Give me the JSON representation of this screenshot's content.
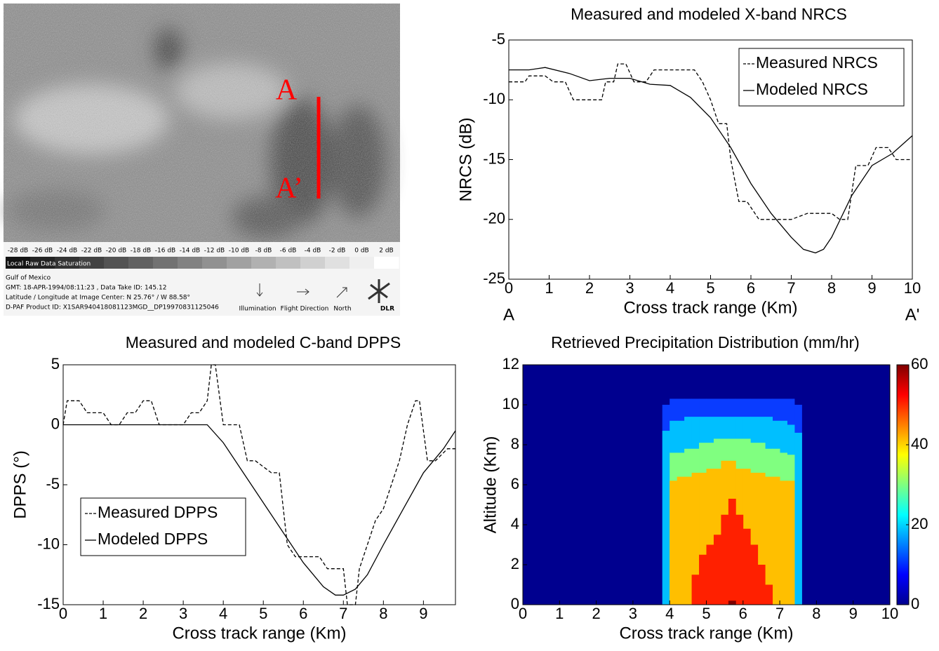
{
  "sar_image": {
    "cut_start_label": "A",
    "cut_end_label": "A’",
    "scale_labels": [
      "-28 dB",
      "-26 dB",
      "-24 dB",
      "-22 dB",
      "-20 dB",
      "-18 dB",
      "-16 dB",
      "-14 dB",
      "-12 dB",
      "-10 dB",
      "-8 dB",
      "-6 dB",
      "-4 dB",
      "-2 dB",
      "0 dB",
      "2 dB"
    ],
    "saturation_label": "Local Raw Data Saturation",
    "info_lines": [
      "Gulf of Mexico",
      "GMT: 18-APR-1994/08:11:23 , Data Take ID: 145.12",
      "Latitude / Longitude at Image Center: N 25.76° / W 88.58°",
      "D-PAF Product ID: X1SAR940418081123MGD__DP19970831125046"
    ],
    "icon_labels": [
      "Illumination",
      "Flight Direction",
      "North"
    ],
    "logo": "DLR"
  },
  "chart_data": [
    {
      "type": "line",
      "title": "Measured and modeled X-band NRCS",
      "xlabel": "Cross track range (Km)",
      "ylabel": "NRCS (dB)",
      "x_end_labels": [
        "A",
        "A'"
      ],
      "xlim": [
        0,
        10
      ],
      "ylim": [
        -25,
        -5
      ],
      "xticks": [
        0,
        1,
        2,
        3,
        4,
        5,
        6,
        7,
        8,
        9,
        10
      ],
      "yticks": [
        -25,
        -20,
        -15,
        -10,
        -5
      ],
      "legend": "upper right",
      "series": [
        {
          "name": "Measured NRCS",
          "color": "#000000",
          "style": "dashed",
          "x": [
            0,
            0.4,
            0.5,
            0.9,
            1.1,
            1.4,
            1.6,
            2.3,
            2.4,
            2.6,
            2.7,
            2.9,
            3.1,
            3.4,
            3.6,
            4.6,
            4.8,
            5.0,
            5.2,
            5.4,
            5.5,
            5.7,
            5.9,
            6.2,
            6.6,
            7.0,
            7.4,
            7.8,
            8.0,
            8.2,
            8.4,
            8.6,
            8.9,
            9.1,
            9.4,
            9.6,
            10
          ],
          "values": [
            -8.5,
            -8.5,
            -8,
            -8,
            -8.5,
            -8.5,
            -10,
            -10,
            -8.5,
            -8.5,
            -7,
            -7,
            -8.5,
            -8.5,
            -7.5,
            -7.5,
            -8.5,
            -10,
            -12,
            -12,
            -15,
            -18.5,
            -18.5,
            -20,
            -20,
            -20,
            -19.5,
            -19.5,
            -19.5,
            -20,
            -20,
            -15.5,
            -15.5,
            -14,
            -14,
            -15,
            -15
          ]
        },
        {
          "name": "Modeled NRCS",
          "color": "#000000",
          "style": "solid",
          "x": [
            0,
            0.5,
            0.9,
            1.5,
            2,
            2.5,
            3,
            3.5,
            4,
            4.5,
            5,
            5.5,
            6,
            6.5,
            7,
            7.3,
            7.6,
            7.8,
            8,
            8.5,
            9,
            9.5,
            10
          ],
          "values": [
            -7.5,
            -7.5,
            -7.3,
            -7.8,
            -8.4,
            -8.2,
            -8.2,
            -8.7,
            -8.8,
            -9.8,
            -11.5,
            -14,
            -17,
            -19.5,
            -21.5,
            -22.5,
            -22.8,
            -22.5,
            -21.5,
            -18,
            -15.5,
            -14.5,
            -13
          ]
        }
      ]
    },
    {
      "type": "line",
      "title": "Measured and modeled C-band DPPS",
      "xlabel": "Cross track range (Km)",
      "ylabel": "DPPS (°)",
      "xlim": [
        0,
        9.8
      ],
      "ylim": [
        -15,
        5
      ],
      "xticks": [
        0,
        1,
        2,
        3,
        4,
        5,
        6,
        7,
        8,
        9
      ],
      "yticks": [
        -15,
        -10,
        -5,
        0,
        5
      ],
      "legend": "lower left",
      "series": [
        {
          "name": "Measured DPPS",
          "color": "#000000",
          "style": "dashed",
          "x": [
            0,
            0.1,
            0.4,
            0.6,
            1,
            1.2,
            1.4,
            1.6,
            1.8,
            2.0,
            2.2,
            2.4,
            3.0,
            3.2,
            3.4,
            3.6,
            3.7,
            3.8,
            4.0,
            4.4,
            4.6,
            4.8,
            5.2,
            5.4,
            5.6,
            5.8,
            6.4,
            6.6,
            7.0,
            7.1,
            7.3,
            7.4,
            7.6,
            7.8,
            8.0,
            8.2,
            8.4,
            8.6,
            8.8,
            8.9,
            9.1,
            9.3,
            9.6,
            9.8
          ],
          "values": [
            0,
            2,
            2,
            1,
            1,
            0,
            0,
            1,
            1,
            2,
            2,
            0,
            0,
            1,
            1,
            2,
            5,
            5,
            0,
            0,
            -3,
            -3,
            -4,
            -4,
            -10,
            -11,
            -11,
            -12,
            -12,
            -15,
            -15,
            -12,
            -10,
            -8,
            -7,
            -5,
            -3,
            0,
            2,
            2,
            -3,
            -3,
            -2,
            -2
          ]
        },
        {
          "name": "Modeled DPPS",
          "color": "#000000",
          "style": "solid",
          "x": [
            0,
            3.6,
            4,
            4.5,
            5,
            5.5,
            6,
            6.5,
            6.8,
            7,
            7.3,
            7.6,
            8,
            8.5,
            9,
            9.5,
            9.8
          ],
          "values": [
            0,
            0,
            -1.5,
            -4,
            -6.5,
            -9,
            -11.5,
            -13.5,
            -14.2,
            -14.2,
            -13.7,
            -12.5,
            -10,
            -7,
            -4,
            -2,
            -0.5
          ]
        }
      ]
    },
    {
      "type": "contourf",
      "title": "Retrieved Precipitation Distribution (mm/hr)",
      "xlabel": "Cross track range (Km)",
      "ylabel": "Altitude (Km)",
      "xlim": [
        0,
        10
      ],
      "ylim": [
        0,
        12
      ],
      "xticks": [
        0,
        1,
        2,
        3,
        4,
        5,
        6,
        7,
        8,
        9,
        10
      ],
      "yticks": [
        0,
        2,
        4,
        6,
        8,
        10,
        12
      ],
      "clim": [
        0,
        60
      ],
      "cticks": [
        0,
        20,
        40,
        60
      ],
      "background": {
        "value": 0,
        "color": "#00008f"
      },
      "x_edges": [
        3.8,
        4.0,
        4.2,
        4.4,
        4.6,
        4.8,
        5.0,
        5.2,
        5.4,
        5.6,
        5.8,
        6.0,
        6.2,
        6.4,
        6.6,
        6.8,
        7.0,
        7.2,
        7.4,
        7.6
      ],
      "levels": [
        {
          "value": 10,
          "color": "#0a3cff",
          "tops": [
            10,
            10.3,
            10.3,
            10.3,
            10.3,
            10.3,
            10.3,
            10.3,
            10.3,
            10.3,
            10.3,
            10.3,
            10.3,
            10.3,
            10.3,
            10.3,
            10.3,
            10.3,
            10
          ]
        },
        {
          "value": 20,
          "color": "#00bfff",
          "tops": [
            8.7,
            9.2,
            9.2,
            9.4,
            9.4,
            9.4,
            9.4,
            9.4,
            9.4,
            9.4,
            9.4,
            9.4,
            9.4,
            9.4,
            9.4,
            9.2,
            9.2,
            9.0,
            8.6
          ]
        },
        {
          "value": 30,
          "color": "#80ff80",
          "tops": [
            null,
            7.6,
            7.6,
            7.8,
            7.8,
            8.1,
            8.1,
            8.3,
            8.3,
            8.3,
            8.3,
            8.3,
            8.1,
            8.1,
            7.8,
            7.8,
            7.6,
            7.5,
            null
          ]
        },
        {
          "value": 40,
          "color": "#ffbf00",
          "tops": [
            null,
            6.2,
            6.4,
            6.4,
            6.6,
            6.6,
            6.8,
            6.8,
            7.2,
            7.2,
            6.8,
            6.8,
            6.6,
            6.6,
            6.4,
            6.4,
            6.2,
            6.2,
            null
          ]
        },
        {
          "value": 50,
          "color": "#ff2000",
          "tops": [
            null,
            null,
            null,
            null,
            1.5,
            2.5,
            3,
            3.5,
            4.5,
            5.3,
            4.5,
            3.8,
            3.0,
            2.0,
            1.0,
            null,
            null,
            null,
            null
          ]
        },
        {
          "value": 60,
          "color": "#800000",
          "tops": [
            null,
            null,
            null,
            null,
            null,
            null,
            null,
            null,
            null,
            0.2,
            null,
            null,
            null,
            null,
            null,
            null,
            null,
            null,
            null
          ]
        }
      ]
    }
  ]
}
